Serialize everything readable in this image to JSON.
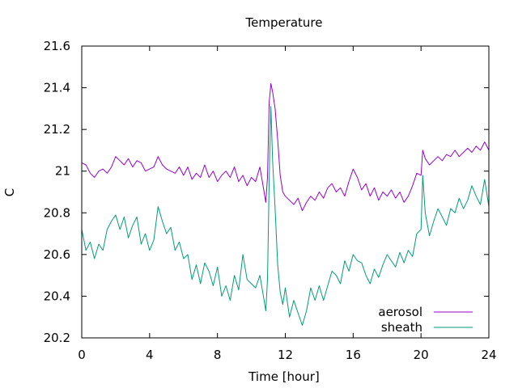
{
  "chart_data": {
    "type": "line",
    "title": "Temperature",
    "xlabel": "Time [hour]",
    "ylabel": "C",
    "xlim": [
      0,
      24
    ],
    "ylim": [
      20.2,
      21.6
    ],
    "xticks": [
      0,
      4,
      8,
      12,
      16,
      20,
      24
    ],
    "yticks": [
      20.2,
      20.4,
      20.6,
      20.8,
      21,
      21.2,
      21.4,
      21.6
    ],
    "xtick_labels": [
      "0",
      "4",
      "8",
      "12",
      "16",
      "20",
      "24"
    ],
    "ytick_labels": [
      "20.2",
      "20.4",
      "20.6",
      "20.8",
      "21",
      "21.2",
      "21.4",
      "21.6"
    ],
    "grid": false,
    "legend_position": "bottom-right",
    "series": [
      {
        "name": "aerosol",
        "color": "#9400d3",
        "x": [
          0,
          0.25,
          0.5,
          0.75,
          1,
          1.25,
          1.5,
          1.75,
          2,
          2.25,
          2.5,
          2.75,
          3,
          3.25,
          3.5,
          3.75,
          4,
          4.25,
          4.5,
          4.75,
          5,
          5.25,
          5.5,
          5.75,
          6,
          6.25,
          6.5,
          6.75,
          7,
          7.25,
          7.5,
          7.75,
          8,
          8.25,
          8.5,
          8.75,
          9,
          9.25,
          9.5,
          9.75,
          10,
          10.25,
          10.5,
          10.75,
          10.85,
          10.95,
          11.05,
          11.15,
          11.25,
          11.4,
          11.55,
          11.7,
          11.85,
          12,
          12.25,
          12.5,
          12.75,
          13,
          13.25,
          13.5,
          13.75,
          14,
          14.25,
          14.5,
          14.75,
          15,
          15.25,
          15.5,
          15.75,
          16,
          16.25,
          16.5,
          16.75,
          17,
          17.25,
          17.5,
          17.75,
          18,
          18.25,
          18.5,
          18.75,
          19,
          19.25,
          19.5,
          19.75,
          20,
          20.1,
          20.25,
          20.5,
          20.75,
          21,
          21.25,
          21.5,
          21.75,
          22,
          22.25,
          22.5,
          22.75,
          23,
          23.25,
          23.5,
          23.75,
          24
        ],
        "values": [
          21.04,
          21.03,
          20.99,
          20.97,
          21.0,
          21.01,
          20.99,
          21.02,
          21.07,
          21.05,
          21.03,
          21.06,
          21.02,
          21.05,
          21.04,
          21.0,
          21.01,
          21.02,
          21.07,
          21.03,
          21.01,
          21.0,
          20.99,
          21.02,
          20.98,
          21.02,
          20.96,
          20.99,
          20.97,
          21.03,
          20.97,
          21.0,
          20.95,
          20.98,
          21.0,
          20.97,
          21.02,
          20.95,
          20.98,
          20.93,
          20.97,
          20.95,
          21.02,
          20.9,
          20.85,
          20.97,
          21.33,
          21.42,
          21.38,
          21.3,
          21.15,
          20.98,
          20.9,
          20.88,
          20.86,
          20.84,
          20.87,
          20.81,
          20.85,
          20.88,
          20.86,
          20.9,
          20.87,
          20.92,
          20.94,
          20.9,
          20.92,
          20.88,
          20.95,
          21.01,
          20.97,
          20.91,
          20.94,
          20.88,
          20.92,
          20.86,
          20.9,
          20.88,
          20.91,
          20.87,
          20.9,
          20.85,
          20.88,
          20.93,
          20.99,
          20.98,
          21.1,
          21.06,
          21.03,
          21.05,
          21.07,
          21.05,
          21.08,
          21.07,
          21.1,
          21.07,
          21.09,
          21.11,
          21.09,
          21.12,
          21.1,
          21.14,
          21.1
        ]
      },
      {
        "name": "sheath",
        "color": "#009e73",
        "x": [
          0,
          0.25,
          0.5,
          0.75,
          1,
          1.25,
          1.5,
          1.75,
          2,
          2.25,
          2.5,
          2.75,
          3,
          3.25,
          3.5,
          3.75,
          4,
          4.25,
          4.5,
          4.75,
          5,
          5.25,
          5.5,
          5.75,
          6,
          6.25,
          6.5,
          6.75,
          7,
          7.25,
          7.5,
          7.75,
          8,
          8.25,
          8.5,
          8.75,
          9,
          9.25,
          9.5,
          9.75,
          10,
          10.25,
          10.5,
          10.75,
          10.85,
          10.95,
          11.05,
          11.15,
          11.25,
          11.4,
          11.55,
          11.7,
          11.85,
          12,
          12.25,
          12.5,
          12.75,
          13,
          13.25,
          13.5,
          13.75,
          14,
          14.25,
          14.5,
          14.75,
          15,
          15.25,
          15.5,
          15.75,
          16,
          16.25,
          16.5,
          16.75,
          17,
          17.25,
          17.5,
          17.75,
          18,
          18.25,
          18.5,
          18.75,
          19,
          19.25,
          19.5,
          19.75,
          20,
          20.1,
          20.25,
          20.5,
          20.75,
          21,
          21.25,
          21.5,
          21.75,
          22,
          22.25,
          22.5,
          22.75,
          23,
          23.25,
          23.5,
          23.75,
          24
        ],
        "values": [
          20.72,
          20.62,
          20.66,
          20.58,
          20.65,
          20.62,
          20.72,
          20.76,
          20.79,
          20.72,
          20.78,
          20.68,
          20.74,
          20.78,
          20.65,
          20.7,
          20.62,
          20.67,
          20.83,
          20.76,
          20.7,
          20.73,
          20.62,
          20.66,
          20.58,
          20.6,
          20.48,
          20.55,
          20.46,
          20.56,
          20.52,
          20.45,
          20.54,
          20.4,
          20.45,
          20.38,
          20.5,
          20.43,
          20.6,
          20.48,
          20.46,
          20.44,
          20.5,
          20.38,
          20.33,
          20.48,
          20.96,
          21.31,
          21.05,
          20.82,
          20.55,
          20.42,
          20.36,
          20.44,
          20.3,
          20.38,
          20.32,
          20.26,
          20.33,
          20.44,
          20.38,
          20.45,
          20.38,
          20.45,
          20.52,
          20.5,
          20.46,
          20.57,
          20.52,
          20.6,
          20.57,
          20.56,
          20.5,
          20.46,
          20.53,
          20.49,
          20.55,
          20.6,
          20.57,
          20.54,
          20.61,
          20.56,
          20.62,
          20.59,
          20.7,
          20.72,
          20.98,
          20.8,
          20.69,
          20.76,
          20.82,
          20.78,
          20.74,
          20.82,
          20.8,
          20.87,
          20.82,
          20.86,
          20.93,
          20.88,
          20.84,
          20.96,
          20.83
        ]
      }
    ]
  }
}
